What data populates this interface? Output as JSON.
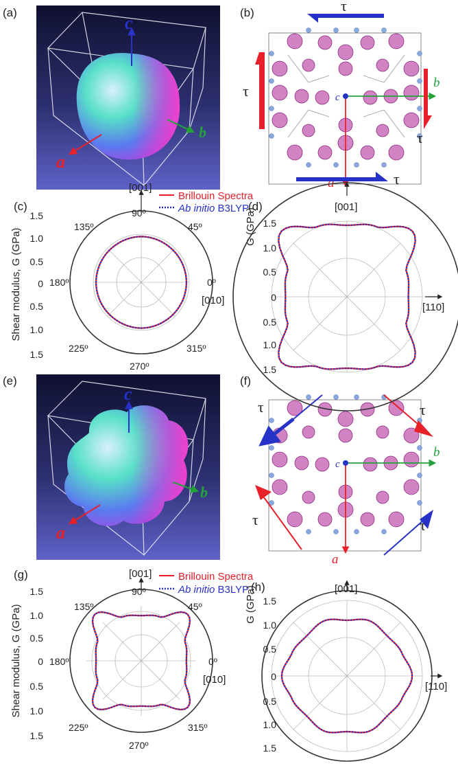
{
  "panel_labels": [
    "(a)",
    "(b)",
    "(c)",
    "(d)",
    "(e)",
    "(f)",
    "(g)",
    "(h)"
  ],
  "axes": {
    "a": "a",
    "b": "b",
    "c": "c"
  },
  "tau": "τ",
  "colors": {
    "red": "#e8202a",
    "blue": "#2732c8",
    "green": "#22a33a",
    "magenta": "#c0359a",
    "gray": "#8e8e8e"
  },
  "legend": {
    "brillouin": "Brillouin Spectra",
    "abinitio_em": "Ab initio",
    "abinitio_rest": " B3LYP"
  },
  "ylabel_left": "Shear modulus, G (GPa)",
  "ylabel_right": "G (GPa)",
  "dir_001": "[001]",
  "dir_010": "[010]",
  "dir_110": "[110]",
  "angles": [
    "0º",
    "45º",
    "90º",
    "135º",
    "180º",
    "225º",
    "270º",
    "315º"
  ],
  "ticks": [
    "1.5",
    "1.0",
    "0.5",
    "0",
    "0.5",
    "1.0",
    "1.5"
  ],
  "chart_data": [
    {
      "panel": "c",
      "type": "polar",
      "r_max": 1.5,
      "grid_r": [
        0.5,
        1.0,
        1.5
      ],
      "angle_ticks_deg": [
        0,
        45,
        90,
        135,
        180,
        225,
        270,
        315
      ],
      "series": [
        {
          "name": "Brillouin Spectra",
          "color": "#e8202a",
          "style": "solid",
          "angles_deg": [
            0,
            45,
            90,
            135,
            180,
            225,
            270,
            315
          ],
          "values": [
            0.95,
            0.95,
            0.96,
            0.95,
            0.95,
            0.95,
            0.96,
            0.95
          ]
        },
        {
          "name": "Ab initio B3LYP",
          "color": "#2732c8",
          "style": "dotted",
          "angles_deg": [
            0,
            45,
            90,
            135,
            180,
            225,
            270,
            315
          ],
          "values": [
            0.95,
            0.95,
            0.96,
            0.95,
            0.95,
            0.95,
            0.96,
            0.95
          ]
        }
      ]
    },
    {
      "panel": "d",
      "type": "polar",
      "r_max": 1.5,
      "grid_r": [
        0.5,
        1.0,
        1.5
      ],
      "series": [
        {
          "name": "Brillouin Spectra",
          "color": "#e8202a",
          "style": "solid",
          "angles_deg": [
            0,
            22.5,
            45,
            67.5,
            90,
            112.5,
            135,
            157.5,
            180,
            202.5,
            225,
            247.5,
            270,
            292.5,
            315,
            337.5
          ],
          "values": [
            0.81,
            0.85,
            1.22,
            1.0,
            0.94,
            1.0,
            1.22,
            0.85,
            0.81,
            0.85,
            1.22,
            1.0,
            0.94,
            1.0,
            1.22,
            0.85
          ]
        },
        {
          "name": "Ab initio B3LYP",
          "color": "#2732c8",
          "style": "dotted",
          "angles_deg": [
            0,
            22.5,
            45,
            67.5,
            90,
            112.5,
            135,
            157.5,
            180,
            202.5,
            225,
            247.5,
            270,
            292.5,
            315,
            337.5
          ],
          "values": [
            0.81,
            0.85,
            1.22,
            1.0,
            0.94,
            1.0,
            1.22,
            0.85,
            0.81,
            0.85,
            1.22,
            1.0,
            0.94,
            1.0,
            1.22,
            0.85
          ]
        }
      ]
    },
    {
      "panel": "g",
      "type": "polar",
      "r_max": 1.5,
      "grid_r": [
        0.5,
        1.0,
        1.5
      ],
      "series": [
        {
          "name": "Brillouin Spectra",
          "color": "#e8202a",
          "style": "solid",
          "angles_deg": [
            0,
            22.5,
            45,
            67.5,
            90,
            112.5,
            135,
            157.5,
            180,
            202.5,
            225,
            247.5,
            270,
            292.5,
            315,
            337.5
          ],
          "values": [
            0.95,
            1.0,
            1.38,
            1.0,
            0.95,
            1.0,
            1.38,
            1.0,
            0.95,
            1.0,
            1.38,
            1.0,
            0.95,
            1.0,
            1.38,
            1.0
          ]
        },
        {
          "name": "Ab initio B3LYP",
          "color": "#2732c8",
          "style": "dotted",
          "angles_deg": [
            0,
            22.5,
            45,
            67.5,
            90,
            112.5,
            135,
            157.5,
            180,
            202.5,
            225,
            247.5,
            270,
            292.5,
            315,
            337.5
          ],
          "values": [
            0.95,
            1.0,
            1.38,
            1.0,
            0.95,
            1.0,
            1.38,
            1.0,
            0.95,
            1.0,
            1.38,
            1.0,
            0.95,
            1.0,
            1.38,
            1.0
          ]
        }
      ]
    },
    {
      "panel": "h",
      "type": "polar",
      "r_max": 1.5,
      "grid_r": [
        0.5,
        1.0,
        1.5
      ],
      "series": [
        {
          "name": "Brillouin Spectra",
          "color": "#e8202a",
          "style": "solid",
          "angles_deg": [
            0,
            22.5,
            45,
            67.5,
            90,
            112.5,
            135,
            157.5,
            180,
            202.5,
            225,
            247.5,
            270,
            292.5,
            315,
            337.5
          ],
          "values": [
            1.15,
            1.05,
            1.0,
            1.05,
            0.98,
            1.05,
            1.0,
            1.05,
            1.15,
            1.05,
            1.0,
            1.05,
            0.98,
            1.05,
            1.0,
            1.05
          ]
        },
        {
          "name": "Ab initio B3LYP",
          "color": "#2732c8",
          "style": "dotted",
          "angles_deg": [
            0,
            22.5,
            45,
            67.5,
            90,
            112.5,
            135,
            157.5,
            180,
            202.5,
            225,
            247.5,
            270,
            292.5,
            315,
            337.5
          ],
          "values": [
            1.15,
            1.05,
            1.0,
            1.05,
            0.98,
            1.05,
            1.0,
            1.05,
            1.15,
            1.05,
            1.0,
            1.05,
            0.98,
            1.05,
            1.0,
            1.05
          ]
        }
      ]
    }
  ]
}
